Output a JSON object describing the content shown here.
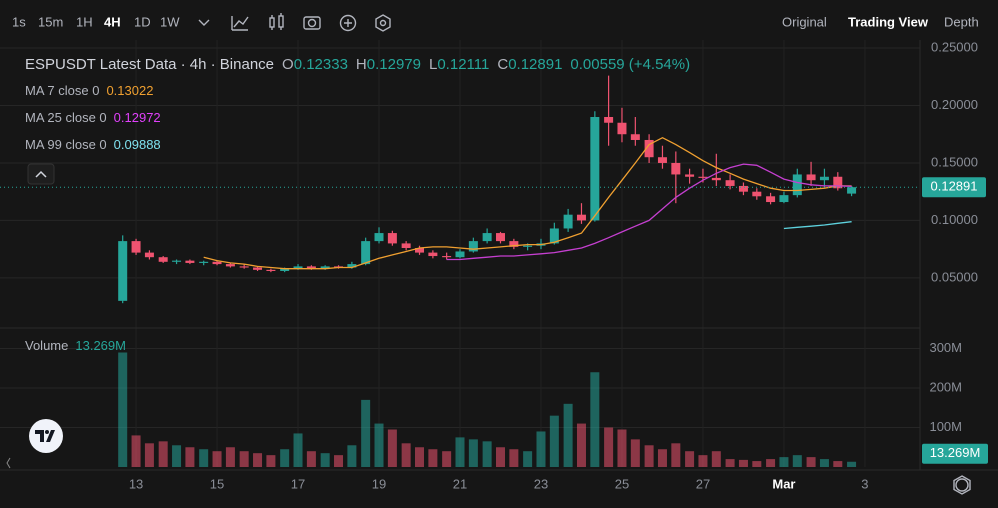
{
  "toolbar": {
    "intervals": [
      "1s",
      "15m",
      "1H",
      "4H",
      "1D",
      "1W"
    ],
    "views": [
      "Original",
      "Trading View",
      "Depth"
    ]
  },
  "legend": {
    "title": "ESPUSDT Latest Data · 4h · Binance",
    "ohlc": [
      {
        "label": "O",
        "value": "0.12333"
      },
      {
        "label": "H",
        "value": "0.12979"
      },
      {
        "label": "L",
        "value": "0.12111"
      },
      {
        "label": "C",
        "value": "0.12891"
      }
    ],
    "change": "0.00559 (+4.54%)",
    "ma": [
      {
        "label": "MA 7 close 0",
        "value": "0.13022"
      },
      {
        "label": "MA 25 close 0",
        "value": "0.12972"
      },
      {
        "label": "MA 99 close 0",
        "value": "0.09888"
      }
    ],
    "volume_label": "Volume",
    "volume_value": "13.269M"
  },
  "chart_data": {
    "type": "candlestick",
    "up_color": "#26a69a",
    "down_color": "#ef5370",
    "x": [
      12.67,
      13,
      13.33,
      13.67,
      14,
      14.33,
      14.67,
      15,
      15.33,
      15.67,
      16,
      16.33,
      16.67,
      17,
      17.33,
      17.67,
      18,
      18.33,
      18.67,
      19,
      19.33,
      19.67,
      20,
      20.33,
      20.67,
      21,
      21.33,
      21.67,
      22,
      22.33,
      22.67,
      23,
      23.33,
      23.67,
      24,
      24.33,
      24.67,
      25,
      25.33,
      25.67,
      26,
      26.33,
      26.67,
      27,
      27.33,
      27.67,
      28,
      28.33,
      28.67,
      29,
      29.33,
      29.67,
      30,
      30.33,
      30.67
    ],
    "open": [
      0.03,
      0.082,
      0.072,
      0.068,
      0.064,
      0.065,
      0.063,
      0.064,
      0.062,
      0.06,
      0.059,
      0.057,
      0.056,
      0.058,
      0.06,
      0.058,
      0.06,
      0.059,
      0.062,
      0.082,
      0.089,
      0.08,
      0.076,
      0.072,
      0.069,
      0.068,
      0.073,
      0.082,
      0.089,
      0.082,
      0.077,
      0.078,
      0.08,
      0.093,
      0.105,
      0.1,
      0.19,
      0.185,
      0.175,
      0.17,
      0.155,
      0.15,
      0.14,
      0.138,
      0.137,
      0.135,
      0.13,
      0.125,
      0.121,
      0.116,
      0.122,
      0.14,
      0.135,
      0.138,
      0.12333
    ],
    "high": [
      0.087,
      0.084,
      0.074,
      0.069,
      0.066,
      0.066,
      0.065,
      0.065,
      0.063,
      0.062,
      0.06,
      0.058,
      0.059,
      0.062,
      0.061,
      0.061,
      0.061,
      0.064,
      0.085,
      0.094,
      0.091,
      0.082,
      0.078,
      0.074,
      0.072,
      0.075,
      0.085,
      0.093,
      0.09,
      0.084,
      0.08,
      0.084,
      0.098,
      0.11,
      0.115,
      0.195,
      0.226,
      0.198,
      0.19,
      0.175,
      0.165,
      0.16,
      0.145,
      0.145,
      0.158,
      0.14,
      0.133,
      0.128,
      0.124,
      0.125,
      0.145,
      0.151,
      0.145,
      0.142,
      0.12979
    ],
    "low": [
      0.028,
      0.07,
      0.066,
      0.063,
      0.062,
      0.062,
      0.061,
      0.061,
      0.059,
      0.058,
      0.056,
      0.055,
      0.055,
      0.057,
      0.057,
      0.057,
      0.058,
      0.058,
      0.061,
      0.08,
      0.078,
      0.074,
      0.07,
      0.067,
      0.066,
      0.067,
      0.072,
      0.08,
      0.08,
      0.075,
      0.074,
      0.075,
      0.079,
      0.09,
      0.097,
      0.099,
      0.165,
      0.168,
      0.165,
      0.15,
      0.145,
      0.115,
      0.132,
      0.133,
      0.13,
      0.127,
      0.122,
      0.118,
      0.114,
      0.115,
      0.12,
      0.13,
      0.128,
      0.126,
      0.12111
    ],
    "close": [
      0.082,
      0.072,
      0.068,
      0.064,
      0.065,
      0.063,
      0.064,
      0.062,
      0.06,
      0.059,
      0.057,
      0.056,
      0.058,
      0.06,
      0.058,
      0.06,
      0.059,
      0.062,
      0.082,
      0.089,
      0.08,
      0.076,
      0.072,
      0.069,
      0.068,
      0.073,
      0.082,
      0.089,
      0.082,
      0.077,
      0.078,
      0.08,
      0.093,
      0.105,
      0.1,
      0.19,
      0.185,
      0.175,
      0.17,
      0.155,
      0.15,
      0.14,
      0.138,
      0.137,
      0.135,
      0.13,
      0.125,
      0.121,
      0.116,
      0.122,
      0.14,
      0.135,
      0.138,
      0.128,
      0.12891
    ],
    "volume": [
      290,
      80,
      60,
      65,
      55,
      50,
      45,
      40,
      50,
      40,
      35,
      30,
      45,
      85,
      40,
      35,
      30,
      55,
      170,
      110,
      95,
      60,
      50,
      45,
      40,
      75,
      70,
      65,
      50,
      45,
      40,
      90,
      130,
      160,
      110,
      240,
      100,
      95,
      70,
      55,
      45,
      60,
      40,
      30,
      40,
      20,
      18,
      15,
      20,
      25,
      30,
      25,
      20,
      15,
      13.269
    ],
    "ma": [
      {
        "name": "MA 7",
        "color": "#f0a030",
        "values": [
          null,
          null,
          null,
          null,
          null,
          null,
          0.068,
          0.065,
          0.063,
          0.062,
          0.06,
          0.059,
          0.058,
          0.058,
          0.058,
          0.058,
          0.059,
          0.059,
          0.063,
          0.067,
          0.07,
          0.073,
          0.076,
          0.077,
          0.077,
          0.076,
          0.075,
          0.076,
          0.077,
          0.078,
          0.079,
          0.079,
          0.081,
          0.085,
          0.089,
          0.104,
          0.12,
          0.135,
          0.15,
          0.166,
          0.172,
          0.166,
          0.159,
          0.152,
          0.146,
          0.141,
          0.136,
          0.132,
          0.128,
          0.126,
          0.126,
          0.127,
          0.128,
          0.13,
          0.13
        ]
      },
      {
        "name": "MA 25",
        "color": "#c53fd0",
        "values": [
          null,
          null,
          null,
          null,
          null,
          null,
          null,
          null,
          null,
          null,
          null,
          null,
          null,
          null,
          null,
          null,
          null,
          null,
          null,
          null,
          null,
          null,
          null,
          null,
          0.066,
          0.066,
          0.067,
          0.068,
          0.069,
          0.069,
          0.07,
          0.071,
          0.072,
          0.074,
          0.076,
          0.08,
          0.085,
          0.09,
          0.095,
          0.1,
          0.11,
          0.12,
          0.128,
          0.135,
          0.141,
          0.146,
          0.149,
          0.148,
          0.142,
          0.136,
          0.133,
          0.131,
          0.13,
          0.13,
          0.1297
        ]
      },
      {
        "name": "MA 99",
        "color": "#5ed2de",
        "values": [
          null,
          null,
          null,
          null,
          null,
          null,
          null,
          null,
          null,
          null,
          null,
          null,
          null,
          null,
          null,
          null,
          null,
          null,
          null,
          null,
          null,
          null,
          null,
          null,
          null,
          null,
          null,
          null,
          null,
          null,
          null,
          null,
          null,
          null,
          null,
          null,
          null,
          null,
          null,
          null,
          null,
          null,
          null,
          null,
          null,
          null,
          null,
          null,
          null,
          0.093,
          0.094,
          0.095,
          0.096,
          0.0975,
          0.0989
        ]
      }
    ],
    "xlim": [
      9.64,
      32.36
    ],
    "xticks": [
      13,
      15,
      17,
      19,
      21,
      23,
      25,
      27,
      {
        "value": 29,
        "label": "Mar"
      },
      {
        "value": 31,
        "label": "3"
      }
    ],
    "ylim": [
      0.009,
      0.257
    ],
    "yticks": [
      {
        "value": 0.05,
        "label": "0.05000"
      },
      {
        "value": 0.1,
        "label": "0.10000"
      },
      {
        "value": 0.15,
        "label": "0.15000"
      },
      {
        "value": 0.2,
        "label": "0.20000"
      },
      {
        "value": 0.25,
        "label": "0.25000"
      }
    ],
    "vlim": [
      0,
      347
    ],
    "vticks": [
      {
        "value": 100,
        "label": "100M"
      },
      {
        "value": 200,
        "label": "200M"
      },
      {
        "value": 300,
        "label": "300M"
      }
    ],
    "price_label": "0.12891",
    "volume_tag": "13.269M",
    "grid": true
  }
}
